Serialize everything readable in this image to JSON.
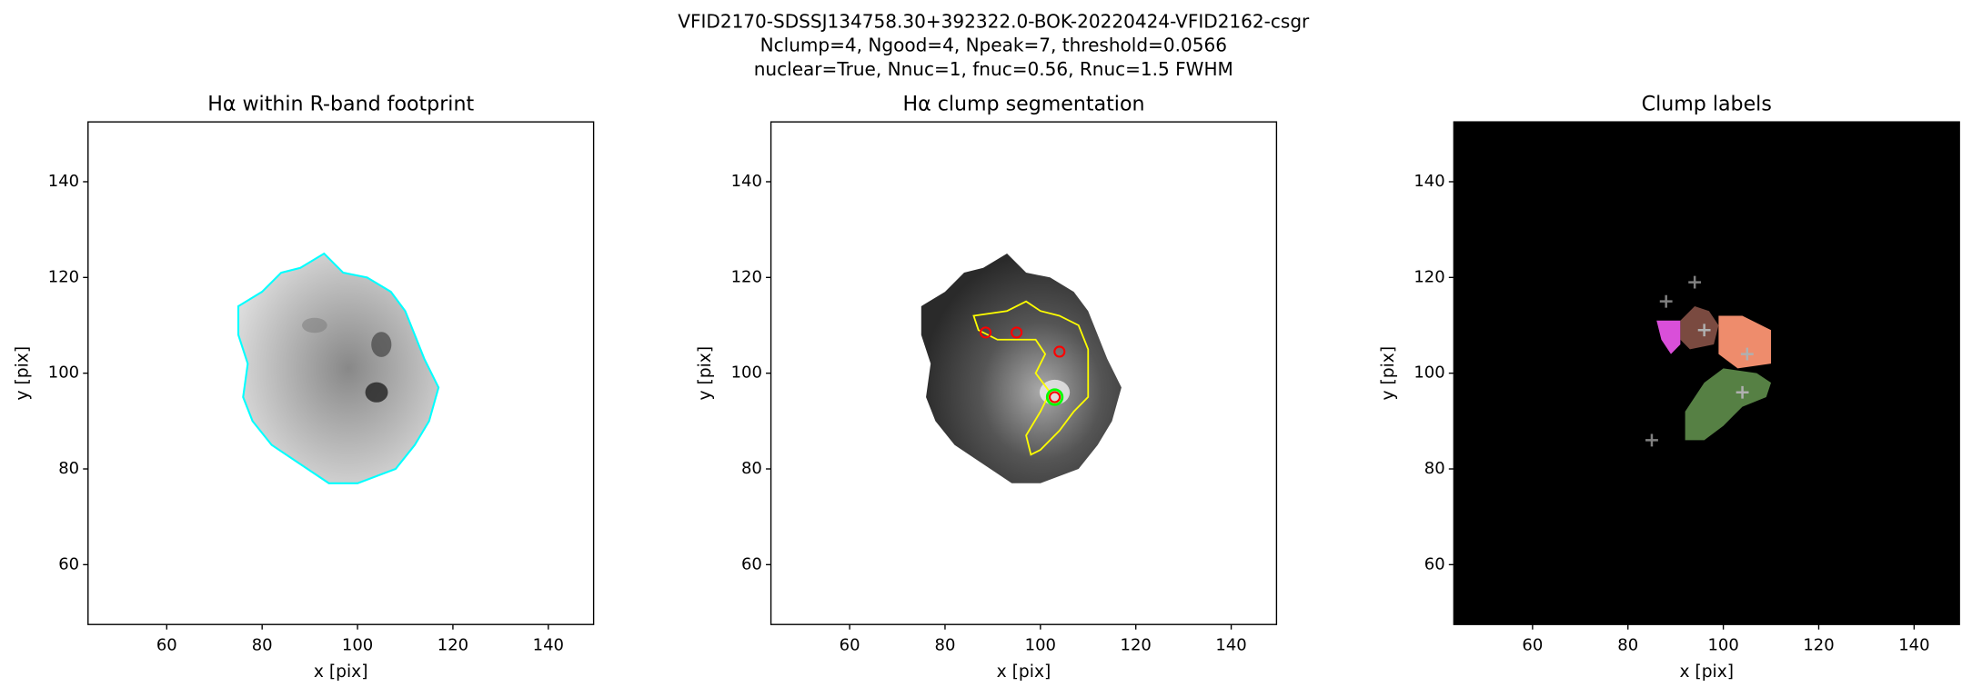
{
  "figure": {
    "title_lines": [
      "VFID2170-SDSSJ134758.30+392322.0-BOK-20220424-VFID2162-csgr",
      "Nclump=4, Ngood=4, Npeak=7, threshold=0.0566",
      "nuclear=True, Nnuc=1, fnuc=0.56, Rnuc=1.5 FWHM"
    ]
  },
  "chart_data": [
    {
      "type": "image",
      "title": "Hα within R-band footprint",
      "xlabel": "x [pix]",
      "ylabel": "y [pix]",
      "xlim": [
        43.5,
        149.5
      ],
      "ylim": [
        47.5,
        152.5
      ],
      "xticks": [
        60,
        80,
        100,
        120,
        140
      ],
      "yticks": [
        60,
        80,
        100,
        120,
        140
      ],
      "background": "#ffffff"
    },
    {
      "type": "image",
      "title": "Hα clump segmentation",
      "xlabel": "x [pix]",
      "ylabel": "y [pix]",
      "xlim": [
        43.5,
        149.5
      ],
      "ylim": [
        47.5,
        152.5
      ],
      "xticks": [
        60,
        80,
        100,
        120,
        140
      ],
      "yticks": [
        60,
        80,
        100,
        120,
        140
      ],
      "background": "#ffffff",
      "series": [
        {
          "name": "peaks",
          "color": "#ff0000",
          "marker": "circle",
          "x": [
            88.5,
            95,
            104,
            103
          ],
          "y": [
            108.5,
            108.5,
            104.5,
            95
          ]
        },
        {
          "name": "nucleus",
          "color": "#00ff00",
          "marker": "circle",
          "x": [
            103
          ],
          "y": [
            95
          ]
        }
      ]
    },
    {
      "type": "image",
      "title": "Clump labels",
      "xlabel": "x [pix]",
      "ylabel": "y [pix]",
      "xlim": [
        43.5,
        149.5
      ],
      "ylim": [
        47.5,
        152.5
      ],
      "xticks": [
        60,
        80,
        100,
        120,
        140
      ],
      "yticks": [
        60,
        80,
        100,
        120,
        140
      ],
      "background": "#000000",
      "series": [
        {
          "name": "peaks",
          "color": "#808080",
          "marker": "plus",
          "x": [
            88,
            94,
            85
          ],
          "y": [
            115,
            119,
            86
          ]
        },
        {
          "name": "centers",
          "color": "#b0b0b0",
          "marker": "plus",
          "x": [
            96,
            105,
            104
          ],
          "y": [
            109,
            104,
            96
          ]
        }
      ]
    }
  ]
}
